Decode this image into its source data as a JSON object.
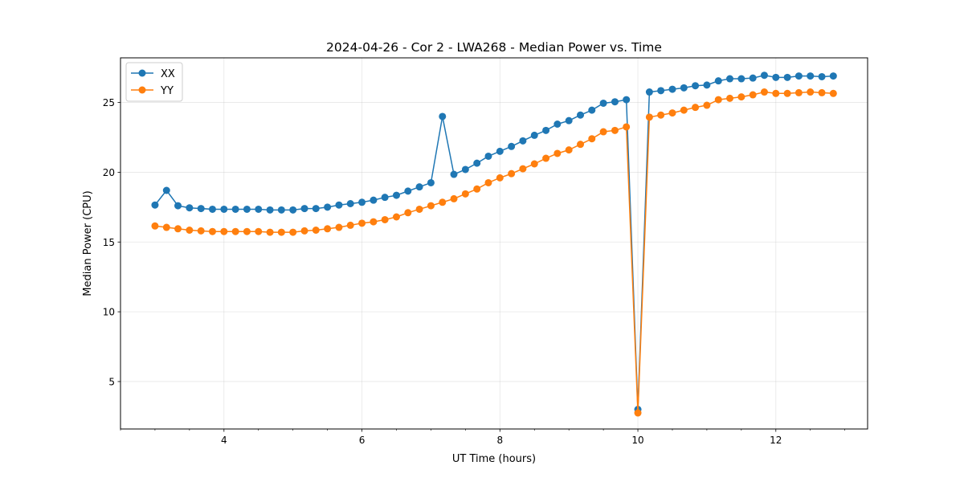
{
  "chart_data": {
    "type": "line",
    "title": "2024-04-26 - Cor 2 - LWA268 - Median Power vs. Time",
    "xlabel": "UT Time (hours)",
    "ylabel": "Median Power (CPU)",
    "xlim": [
      2.5,
      13.33
    ],
    "ylim": [
      1.6,
      28.2
    ],
    "xticks": [
      4,
      6,
      8,
      10,
      12
    ],
    "xtick_labels": [
      "4",
      "6",
      "8",
      "10",
      "12"
    ],
    "yticks": [
      5,
      10,
      15,
      20,
      25
    ],
    "ytick_labels": [
      "5",
      "10",
      "15",
      "20",
      "25"
    ],
    "grid": true,
    "legend_position": "top-left",
    "x": [
      3.0,
      3.167,
      3.333,
      3.5,
      3.667,
      3.833,
      4.0,
      4.167,
      4.333,
      4.5,
      4.667,
      4.833,
      5.0,
      5.167,
      5.333,
      5.5,
      5.667,
      5.833,
      6.0,
      6.167,
      6.333,
      6.5,
      6.667,
      6.833,
      7.0,
      7.167,
      7.333,
      7.5,
      7.667,
      7.833,
      8.0,
      8.167,
      8.333,
      8.5,
      8.667,
      8.833,
      9.0,
      9.167,
      9.333,
      9.5,
      9.667,
      9.833,
      10.0,
      10.167,
      10.333,
      10.5,
      10.667,
      10.833,
      11.0,
      11.167,
      11.333,
      11.5,
      11.667,
      11.833,
      12.0,
      12.167,
      12.333,
      12.5,
      12.667,
      12.833
    ],
    "series": [
      {
        "name": "XX",
        "color": "#1f77b4",
        "values": [
          17.65,
          18.7,
          17.6,
          17.45,
          17.4,
          17.35,
          17.35,
          17.35,
          17.35,
          17.35,
          17.3,
          17.3,
          17.3,
          17.4,
          17.4,
          17.5,
          17.65,
          17.75,
          17.85,
          18.0,
          18.2,
          18.35,
          18.65,
          18.95,
          19.25,
          24.0,
          19.85,
          20.2,
          20.65,
          21.15,
          21.5,
          21.85,
          22.25,
          22.65,
          23.0,
          23.45,
          23.7,
          24.1,
          24.45,
          24.95,
          25.05,
          25.2,
          3.0,
          25.75,
          25.85,
          25.95,
          26.05,
          26.2,
          26.25,
          26.55,
          26.7,
          26.7,
          26.75,
          26.95,
          26.8,
          26.8,
          26.9,
          26.9,
          26.85,
          26.9
        ]
      },
      {
        "name": "YY",
        "color": "#ff7f0e",
        "values": [
          16.15,
          16.05,
          15.95,
          15.85,
          15.8,
          15.75,
          15.75,
          15.75,
          15.75,
          15.75,
          15.7,
          15.7,
          15.7,
          15.8,
          15.85,
          15.95,
          16.05,
          16.2,
          16.35,
          16.45,
          16.6,
          16.8,
          17.1,
          17.35,
          17.6,
          17.85,
          18.1,
          18.45,
          18.8,
          19.25,
          19.6,
          19.9,
          20.25,
          20.6,
          21.0,
          21.35,
          21.6,
          22.0,
          22.4,
          22.9,
          23.0,
          23.25,
          2.75,
          23.95,
          24.1,
          24.25,
          24.45,
          24.65,
          24.8,
          25.2,
          25.3,
          25.4,
          25.55,
          25.75,
          25.65,
          25.65,
          25.7,
          25.75,
          25.7,
          25.65
        ]
      }
    ]
  }
}
